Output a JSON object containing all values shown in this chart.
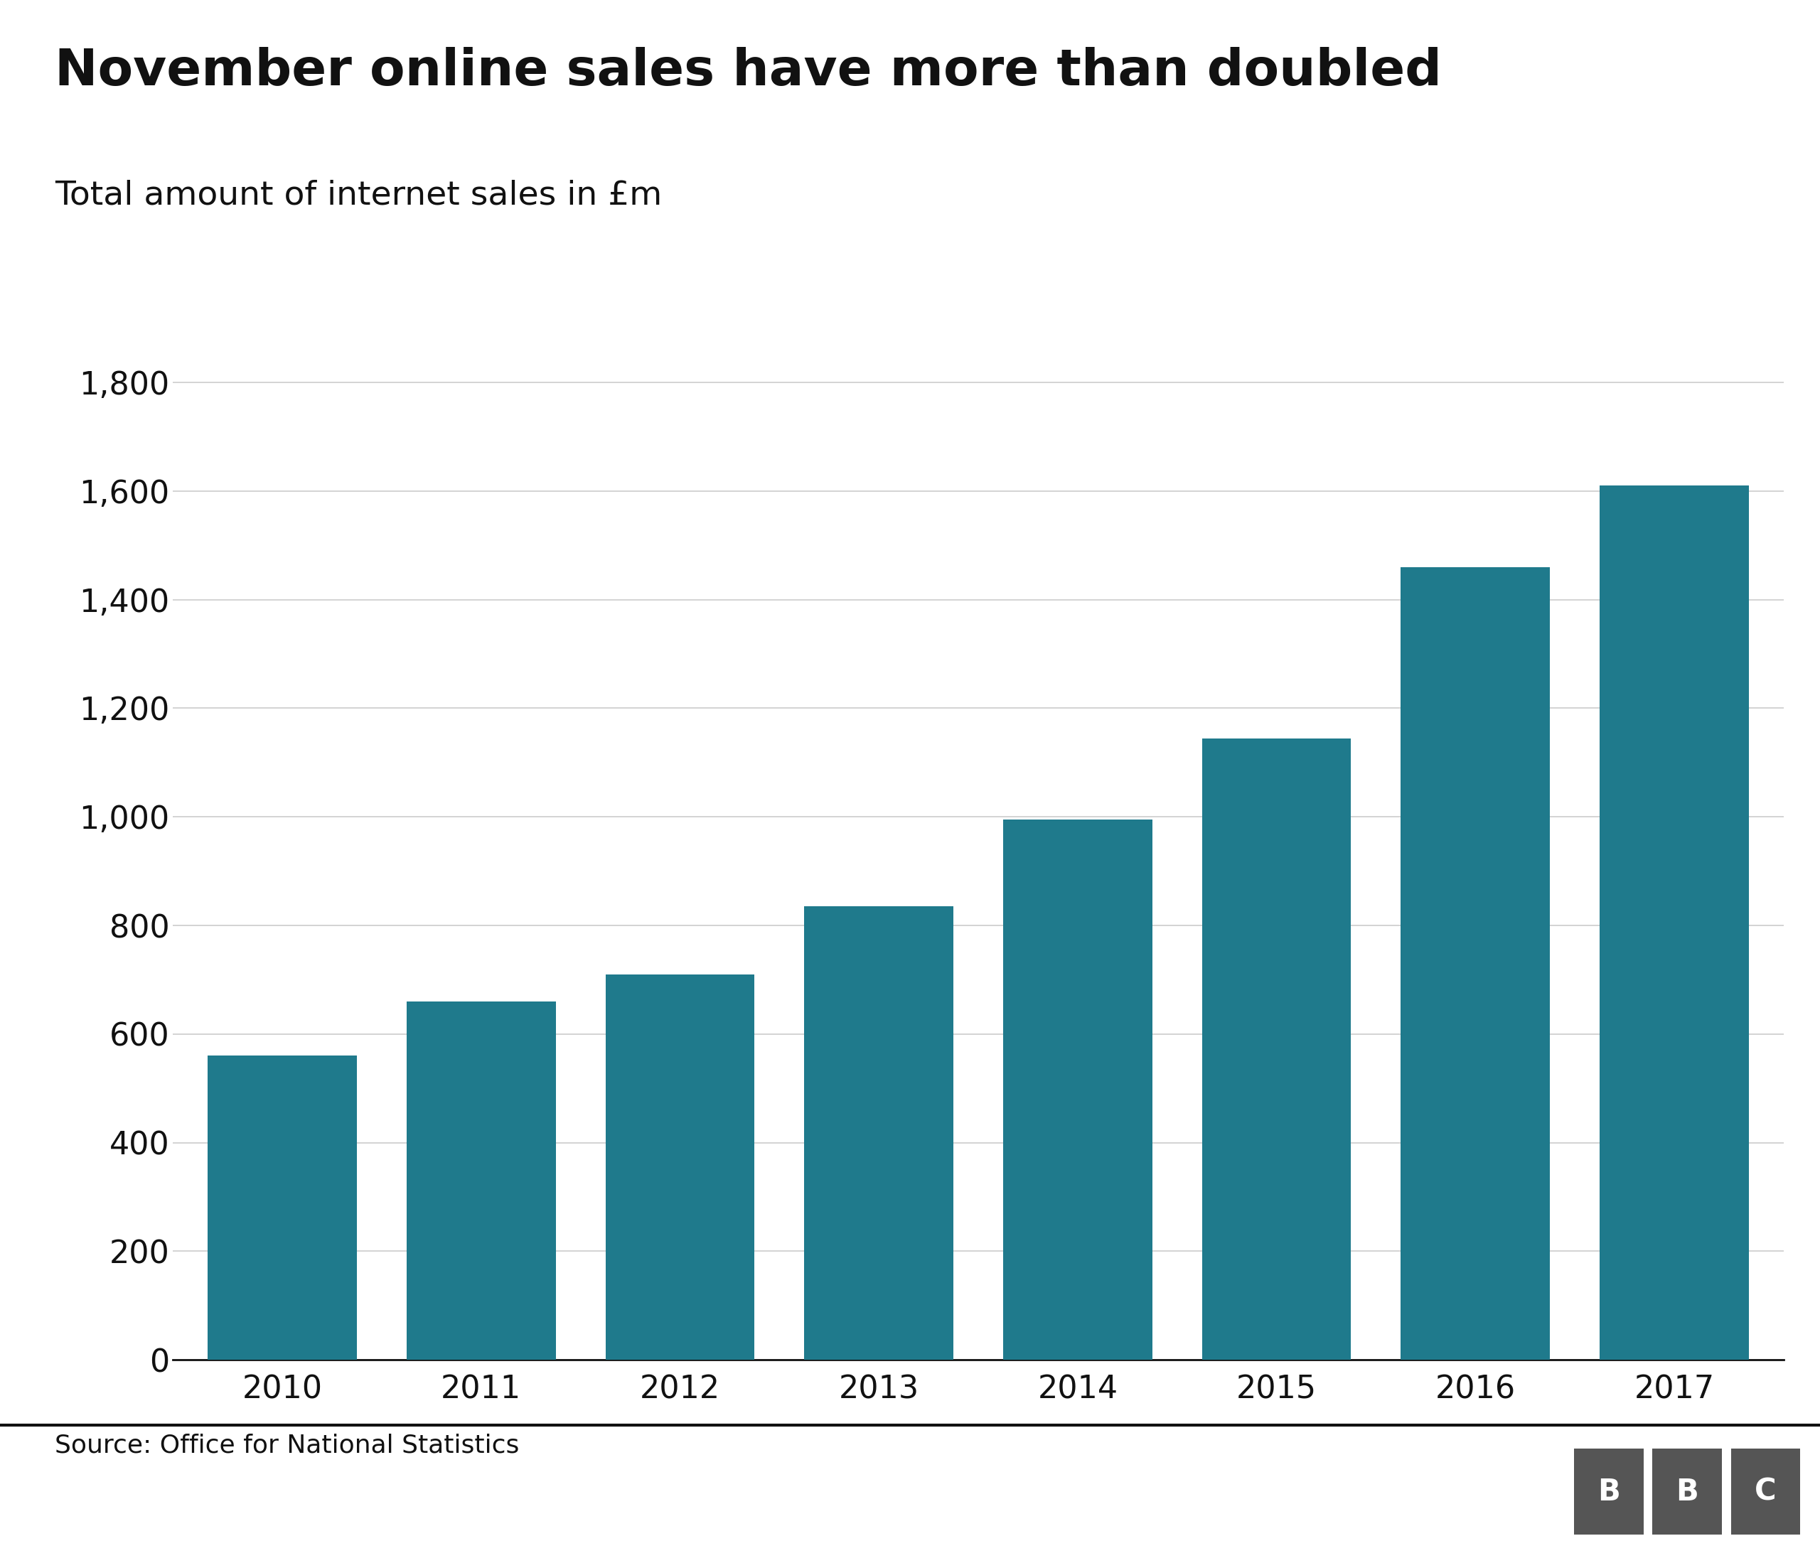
{
  "title": "November online sales have more than doubled",
  "subtitle": "Total amount of internet sales in £m",
  "source": "Source: Office for National Statistics",
  "categories": [
    "2010",
    "2011",
    "2012",
    "2013",
    "2014",
    "2015",
    "2016",
    "2017"
  ],
  "values": [
    560,
    660,
    710,
    835,
    995,
    1145,
    1460,
    1610
  ],
  "bar_color": "#1f7a8c",
  "background_color": "#ffffff",
  "grid_color": "#cccccc",
  "title_color": "#111111",
  "subtitle_color": "#111111",
  "source_color": "#111111",
  "axis_color": "#111111",
  "tick_color": "#111111",
  "bbc_box_color": "#555555",
  "ylim": [
    0,
    1900
  ],
  "yticks": [
    0,
    200,
    400,
    600,
    800,
    1000,
    1200,
    1400,
    1600,
    1800
  ],
  "title_fontsize": 52,
  "subtitle_fontsize": 34,
  "tick_fontsize": 32,
  "source_fontsize": 26,
  "bar_width": 0.75
}
